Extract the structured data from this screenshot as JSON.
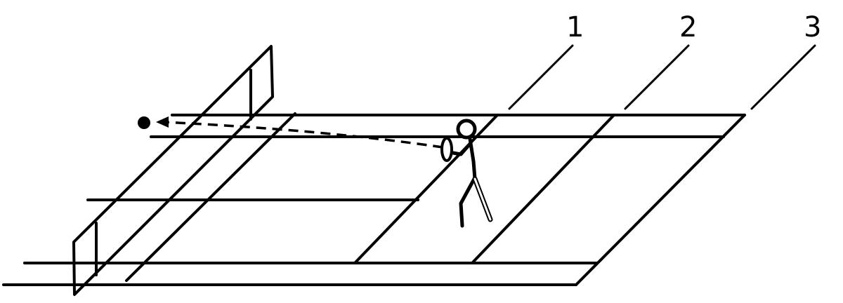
{
  "labels": {
    "zone_1": "1",
    "zone_2": "2",
    "zone_3": "3"
  },
  "icons": {
    "shuttlecock": "ball-icon",
    "player": "player-icon",
    "racket": "racket-icon"
  },
  "colors": {
    "line": "#000000",
    "background": "#ffffff"
  }
}
